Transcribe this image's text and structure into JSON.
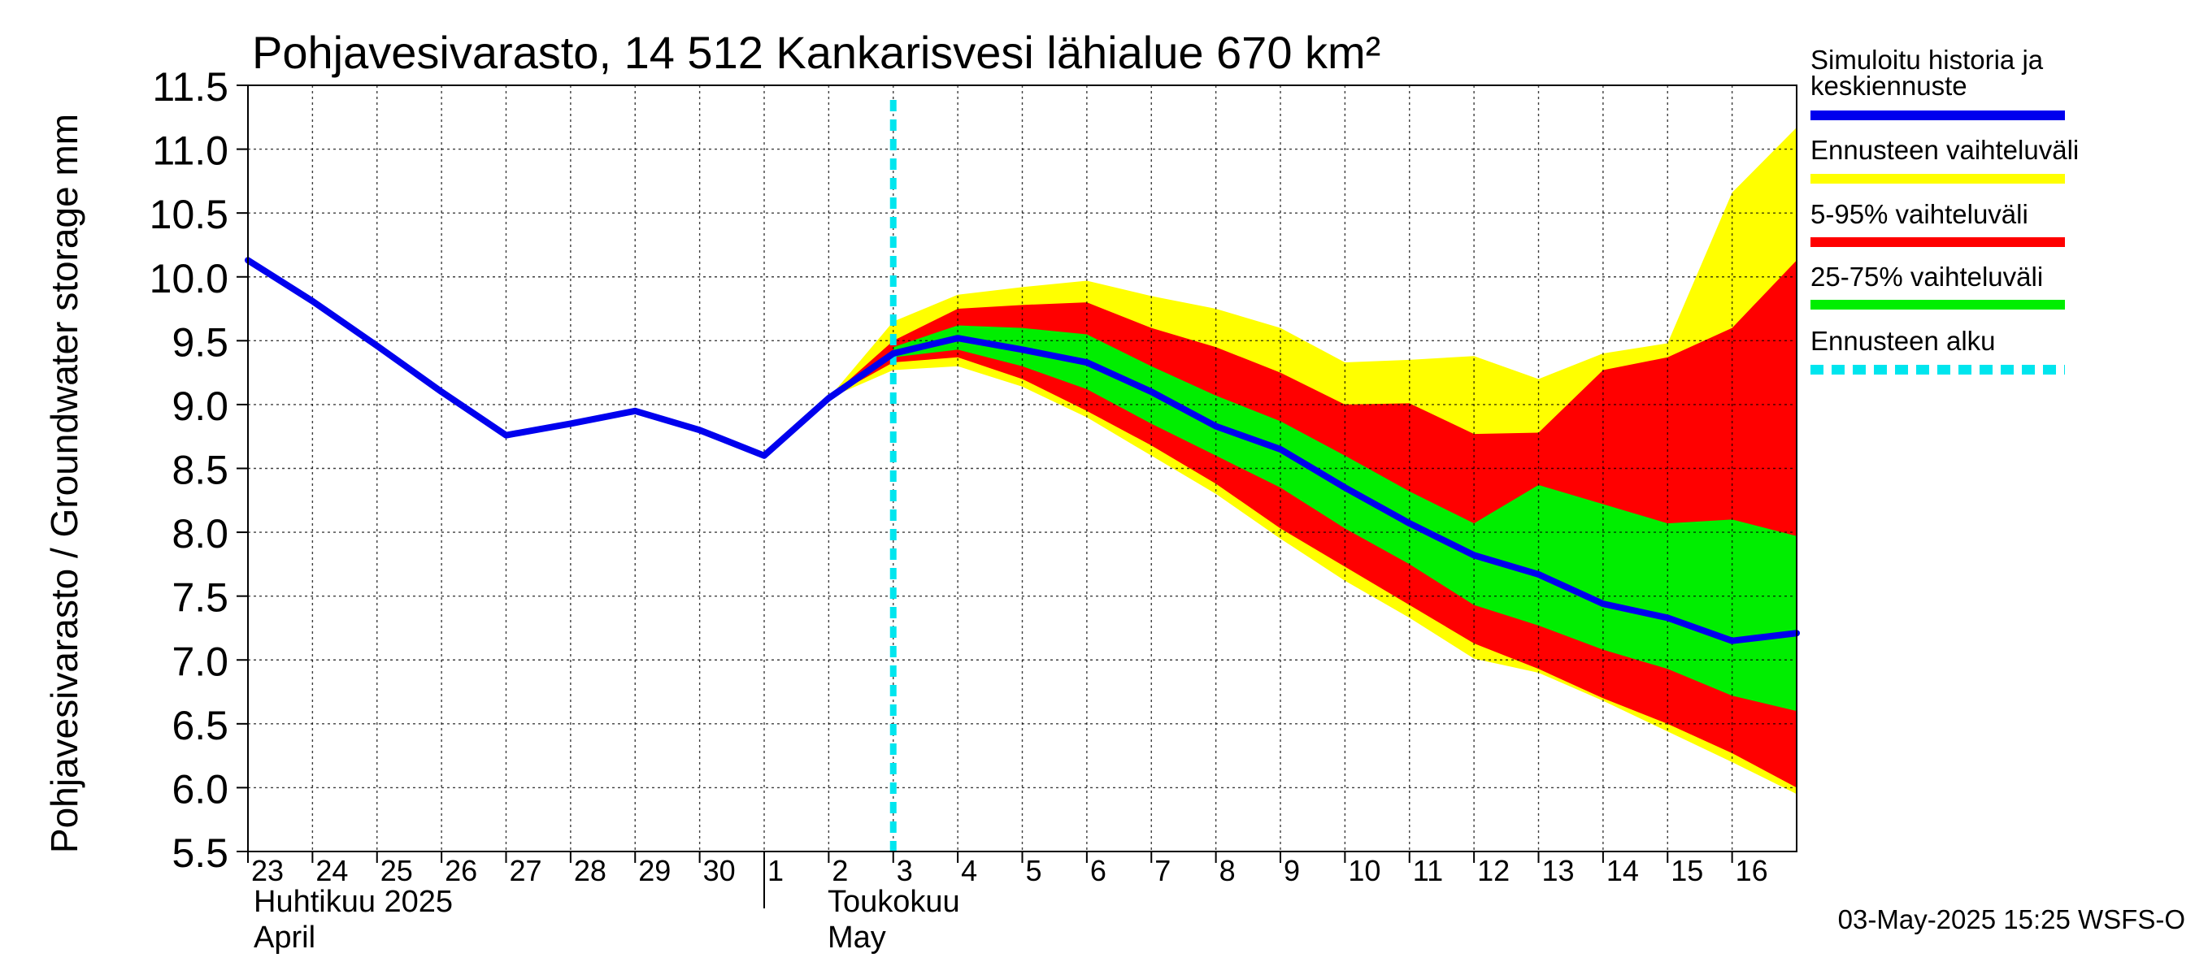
{
  "chart_data": {
    "type": "area",
    "title": "Pohjavesivarasto,  14 512 Kankarisvesi lähialue 670 km²",
    "ylabel": "Pohjavesivarasto / Groundwater storage   mm",
    "ylim": [
      5.5,
      11.5
    ],
    "yticks": [
      "5.5",
      "6.0",
      "6.5",
      "7.0",
      "7.5",
      "8.0",
      "8.5",
      "9.0",
      "9.5",
      "10.0",
      "10.5",
      "11.0",
      "11.5"
    ],
    "xlim": [
      23,
      47
    ],
    "xtick_labels": [
      "23",
      "24",
      "25",
      "26",
      "27",
      "28",
      "29",
      "30",
      "1",
      "2",
      "3",
      "4",
      "5",
      "6",
      "7",
      "8",
      "9",
      "10",
      "11",
      "12",
      "13",
      "14",
      "15",
      "16"
    ],
    "month_labels": [
      {
        "line1": "Huhtikuu  2025",
        "line2": "April"
      },
      {
        "line1": "Toukokuu",
        "line2": "May"
      }
    ],
    "grid": true,
    "legend_position": "right",
    "legend": [
      {
        "label": "Simuloitu historia ja keskiennuste",
        "color": "#0000ee",
        "style": "solid"
      },
      {
        "label": "Ennusteen vaihteluväli",
        "color": "#ffff00",
        "style": "solid"
      },
      {
        "label": "5-95% vaihteluväli",
        "color": "#ff0000",
        "style": "solid"
      },
      {
        "label": "25-75% vaihteluväli",
        "color": "#00ee00",
        "style": "solid"
      },
      {
        "label": "Ennusteen alku",
        "color": "#00e5ee",
        "style": "dashed"
      }
    ],
    "forecast_start_x": 33,
    "history": {
      "name": "Simuloitu historia ja keskiennuste",
      "x": [
        23,
        24,
        25,
        26,
        27,
        28,
        29,
        30,
        31,
        32,
        33
      ],
      "y": [
        10.13,
        9.81,
        9.46,
        9.1,
        8.76,
        8.85,
        8.95,
        8.8,
        8.6,
        9.05,
        9.4
      ]
    },
    "median": {
      "x": [
        33,
        34,
        35,
        36,
        37,
        38,
        39,
        40,
        41,
        42,
        43,
        44,
        45,
        46,
        47
      ],
      "y": [
        9.4,
        9.52,
        9.43,
        9.33,
        9.1,
        8.83,
        8.65,
        8.35,
        8.07,
        7.82,
        7.67,
        7.44,
        7.33,
        7.15,
        7.21
      ]
    },
    "bands": [
      {
        "name": "Ennusteen vaihteluväli",
        "color": "#ffff00",
        "x": [
          32,
          33,
          34,
          35,
          36,
          37,
          38,
          39,
          40,
          41,
          42,
          43,
          44,
          45,
          46,
          47
        ],
        "upper": [
          9.05,
          9.65,
          9.86,
          9.92,
          9.97,
          9.85,
          9.75,
          9.6,
          9.33,
          9.35,
          9.38,
          9.2,
          9.4,
          9.48,
          10.66,
          11.17
        ],
        "lower": [
          9.05,
          9.27,
          9.3,
          9.14,
          8.9,
          8.6,
          8.3,
          7.95,
          7.62,
          7.33,
          7.01,
          6.9,
          6.68,
          6.44,
          6.2,
          5.95
        ]
      },
      {
        "name": "5-95% vaihteluväli",
        "color": "#ff0000",
        "x": [
          32,
          33,
          34,
          35,
          36,
          37,
          38,
          39,
          40,
          41,
          42,
          43,
          44,
          45,
          46,
          47
        ],
        "upper": [
          9.05,
          9.5,
          9.75,
          9.78,
          9.8,
          9.6,
          9.45,
          9.25,
          9.0,
          9.01,
          8.77,
          8.78,
          9.27,
          9.37,
          9.6,
          10.13
        ],
        "lower": [
          9.05,
          9.33,
          9.37,
          9.2,
          8.95,
          8.68,
          8.38,
          8.03,
          7.73,
          7.43,
          7.13,
          6.93,
          6.7,
          6.5,
          6.27,
          6.0
        ]
      },
      {
        "name": "25-75% vaihteluväli",
        "color": "#00ee00",
        "x": [
          33,
          34,
          35,
          36,
          37,
          38,
          39,
          40,
          41,
          42,
          43,
          44,
          45,
          46,
          47
        ],
        "upper": [
          9.45,
          9.62,
          9.6,
          9.55,
          9.3,
          9.07,
          8.87,
          8.6,
          8.32,
          8.07,
          8.37,
          8.22,
          8.07,
          8.1,
          7.97
        ],
        "lower": [
          9.37,
          9.43,
          9.3,
          9.12,
          8.85,
          8.6,
          8.35,
          8.03,
          7.75,
          7.43,
          7.27,
          7.08,
          6.93,
          6.72,
          6.6
        ]
      }
    ]
  },
  "footer": {
    "timestamp": "03-May-2025 15:25 WSFS-O"
  }
}
